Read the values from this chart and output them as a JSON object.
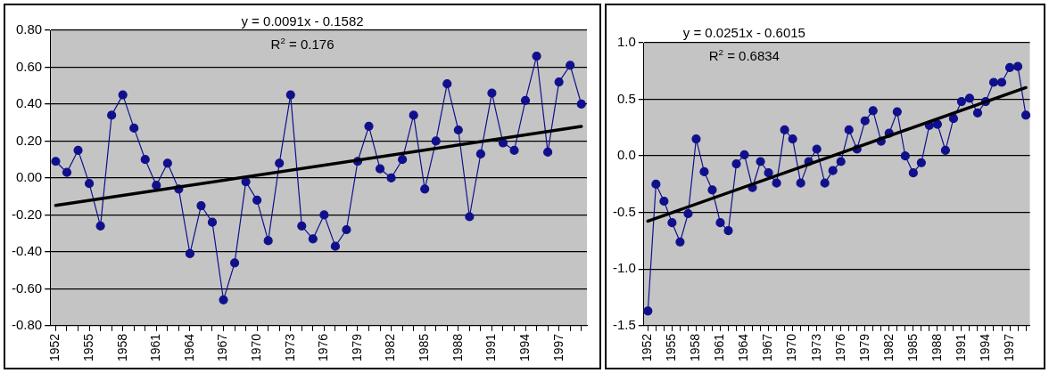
{
  "chart_data": [
    {
      "type": "line",
      "categories": [
        "1952",
        null,
        null,
        "1955",
        null,
        null,
        "1958",
        null,
        null,
        "1961",
        null,
        null,
        "1964",
        null,
        null,
        "1967",
        null,
        null,
        "1970",
        null,
        null,
        "1973",
        null,
        null,
        "1976",
        null,
        null,
        "1979",
        null,
        null,
        "1982",
        null,
        null,
        "1985",
        null,
        null,
        "1988",
        null,
        null,
        "1991",
        null,
        null,
        "1994",
        null,
        null,
        "1997",
        null,
        null
      ],
      "series": [
        {
          "color": "#10108c",
          "values": [
            0.09,
            0.03,
            0.15,
            -0.03,
            -0.26,
            0.34,
            0.45,
            0.27,
            0.1,
            -0.04,
            0.08,
            -0.06,
            -0.41,
            -0.15,
            -0.24,
            -0.66,
            -0.46,
            -0.02,
            -0.12,
            -0.34,
            0.08,
            0.45,
            -0.26,
            -0.33,
            -0.2,
            -0.37,
            -0.28,
            0.09,
            0.28,
            0.05,
            0.0,
            0.1,
            0.34,
            -0.06,
            0.2,
            0.51,
            0.26,
            -0.21,
            0.13,
            0.46,
            0.19,
            0.15,
            0.42,
            0.66,
            0.14,
            0.52,
            0.61,
            0.4
          ]
        },
        {
          "color": "#000000",
          "marker": "none",
          "values": [
            -0.149,
            null,
            null,
            null,
            null,
            null,
            null,
            null,
            null,
            null,
            null,
            null,
            null,
            null,
            null,
            null,
            null,
            null,
            null,
            null,
            null,
            null,
            null,
            null,
            null,
            null,
            null,
            null,
            null,
            null,
            null,
            null,
            null,
            null,
            null,
            null,
            null,
            null,
            null,
            null,
            null,
            null,
            null,
            null,
            null,
            null,
            null,
            0.279
          ]
        }
      ],
      "ylim": [
        -0.8,
        0.8
      ],
      "yticks": [
        {
          "value": -0.8,
          "label": "-0.80"
        },
        {
          "value": -0.6,
          "label": "-0.60"
        },
        {
          "value": -0.4,
          "label": "-0.40"
        },
        {
          "value": -0.2,
          "label": "-0.20"
        },
        {
          "value": 0,
          "label": "0.00"
        },
        {
          "value": 0.2,
          "label": "0.20"
        },
        {
          "value": 0.4,
          "label": "0.40"
        },
        {
          "value": 0.6,
          "label": "0.60"
        },
        {
          "value": 0.8,
          "label": "0.80"
        }
      ],
      "grid": "y",
      "legend": false,
      "marker": "circle",
      "line_style": "solid",
      "annotations": [
        "y = 0.0091x - 0.1582",
        "R$^{2}$ = 0.176"
      ]
    },
    {
      "type": "line",
      "categories": [
        "1952",
        null,
        null,
        "1955",
        null,
        null,
        "1958",
        null,
        null,
        "1961",
        null,
        null,
        "1964",
        null,
        null,
        "1967",
        null,
        null,
        "1970",
        null,
        null,
        "1973",
        null,
        null,
        "1976",
        null,
        null,
        "1979",
        null,
        null,
        "1982",
        null,
        null,
        "1985",
        null,
        null,
        "1988",
        null,
        null,
        "1991",
        null,
        null,
        "1994",
        null,
        null,
        "1997",
        null,
        null
      ],
      "series": [
        {
          "color": "#10108c",
          "values": [
            -1.37,
            -0.25,
            -0.4,
            -0.59,
            -0.76,
            -0.51,
            0.15,
            -0.14,
            -0.3,
            -0.59,
            -0.66,
            -0.07,
            0.01,
            -0.28,
            -0.05,
            -0.15,
            -0.24,
            0.23,
            0.15,
            -0.24,
            -0.05,
            0.06,
            -0.24,
            -0.13,
            -0.05,
            0.23,
            0.06,
            0.31,
            0.4,
            0.13,
            0.2,
            0.39,
            0.0,
            -0.15,
            -0.06,
            0.27,
            0.28,
            0.05,
            0.33,
            0.48,
            0.51,
            0.38,
            0.48,
            0.65,
            0.65,
            0.78,
            0.79,
            0.36
          ]
        },
        {
          "color": "#000000",
          "marker": "none",
          "values": [
            -0.576,
            null,
            null,
            null,
            null,
            null,
            null,
            null,
            null,
            null,
            null,
            null,
            null,
            null,
            null,
            null,
            null,
            null,
            null,
            null,
            null,
            null,
            null,
            null,
            null,
            null,
            null,
            null,
            null,
            null,
            null,
            null,
            null,
            null,
            null,
            null,
            null,
            null,
            null,
            null,
            null,
            null,
            null,
            null,
            null,
            null,
            null,
            0.603
          ]
        }
      ],
      "ylim": [
        -1.5,
        1.0
      ],
      "yticks": [
        {
          "value": -1.5,
          "label": "-1.5"
        },
        {
          "value": -1.0,
          "label": "-1.0"
        },
        {
          "value": -0.5,
          "label": "-0.5"
        },
        {
          "value": 0,
          "label": "0.0"
        },
        {
          "value": 0.5,
          "label": "0.5"
        },
        {
          "value": 1.0,
          "label": "1.0"
        }
      ],
      "grid": "y",
      "legend": false,
      "marker": "circle",
      "line_style": "solid",
      "annotations": [
        "y = 0.0251x - 0.6015",
        "R$^{2}$ = 0.6834"
      ]
    }
  ]
}
